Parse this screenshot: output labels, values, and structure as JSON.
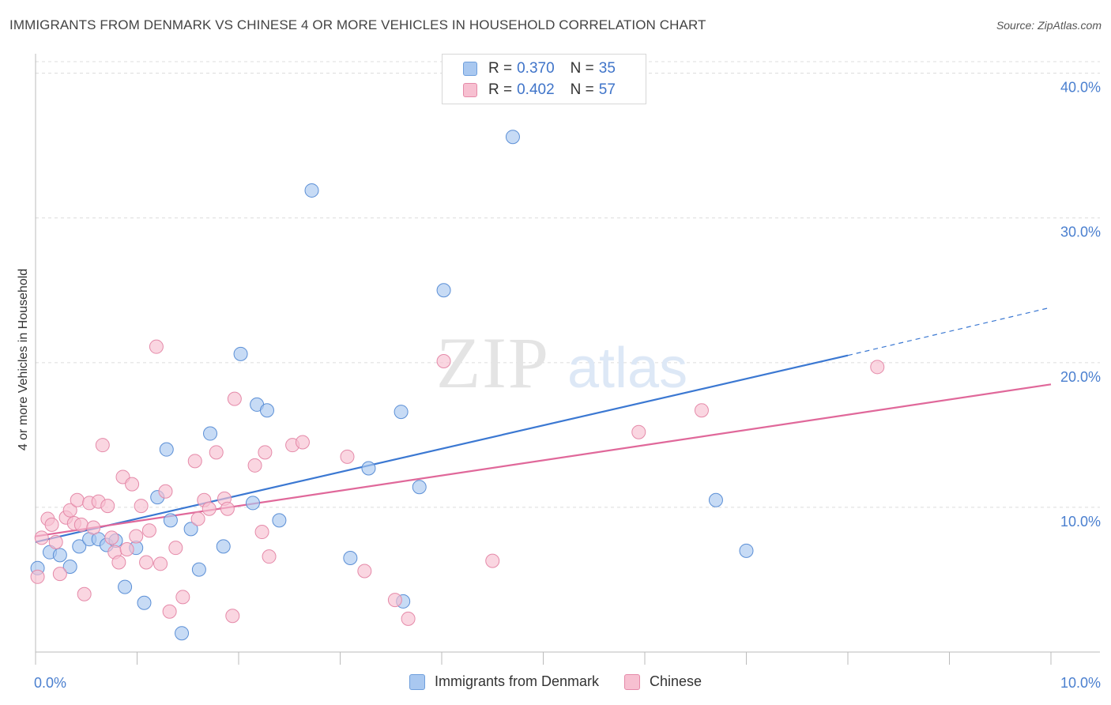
{
  "title": "IMMIGRANTS FROM DENMARK VS CHINESE 4 OR MORE VEHICLES IN HOUSEHOLD CORRELATION CHART",
  "source": "Source: ZipAtlas.com",
  "watermark": {
    "zip": "ZIP",
    "atlas": "atlas"
  },
  "legend": {
    "rows": [
      {
        "r_label": "R =",
        "r_value": "0.370",
        "n_label": "N =",
        "n_value": "35",
        "color": "#a9c8f0",
        "border": "#6f9fdc"
      },
      {
        "r_label": "R =",
        "r_value": "0.402",
        "n_label": "N =",
        "n_value": "57",
        "color": "#f7c0d1",
        "border": "#e58aa9"
      }
    ]
  },
  "bottom_legend": [
    {
      "label": "Immigrants from Denmark",
      "color": "#a9c8f0",
      "border": "#6f9fdc"
    },
    {
      "label": "Chinese",
      "color": "#f7c0d1",
      "border": "#e58aa9"
    }
  ],
  "chart_data": {
    "type": "scatter",
    "title": "IMMIGRANTS FROM DENMARK VS CHINESE 4 OR MORE VEHICLES IN HOUSEHOLD CORRELATION CHART",
    "xlabel": "",
    "ylabel": "4 or more Vehicles in Household",
    "xlim": [
      0,
      10
    ],
    "ylim": [
      0,
      40.8
    ],
    "x_tick_labels": [
      "0.0%",
      "10.0%"
    ],
    "y_ticks": [
      10,
      20,
      30,
      40
    ],
    "y_tick_labels": [
      "10.0%",
      "20.0%",
      "30.0%",
      "40.0%"
    ],
    "grid": true,
    "series": [
      {
        "name": "Immigrants from Denmark",
        "color": "#5b8fd6",
        "fill": "#a9c8f0",
        "points": [
          [
            0.02,
            5.8
          ],
          [
            0.14,
            6.9
          ],
          [
            0.24,
            6.7
          ],
          [
            0.34,
            5.9
          ],
          [
            0.43,
            7.3
          ],
          [
            0.53,
            7.8
          ],
          [
            0.62,
            7.8
          ],
          [
            0.7,
            7.4
          ],
          [
            0.79,
            7.7
          ],
          [
            0.88,
            4.5
          ],
          [
            0.99,
            7.2
          ],
          [
            1.07,
            3.4
          ],
          [
            1.2,
            10.7
          ],
          [
            1.29,
            14.0
          ],
          [
            1.33,
            9.1
          ],
          [
            1.44,
            1.3
          ],
          [
            1.53,
            8.5
          ],
          [
            1.61,
            5.7
          ],
          [
            1.72,
            15.1
          ],
          [
            1.85,
            7.3
          ],
          [
            2.02,
            20.6
          ],
          [
            2.14,
            10.3
          ],
          [
            2.18,
            17.1
          ],
          [
            2.28,
            16.7
          ],
          [
            2.4,
            9.1
          ],
          [
            2.72,
            31.9
          ],
          [
            3.1,
            6.5
          ],
          [
            3.28,
            12.7
          ],
          [
            3.6,
            16.6
          ],
          [
            3.62,
            3.5
          ],
          [
            3.78,
            11.4
          ],
          [
            4.02,
            25.0
          ],
          [
            4.7,
            35.6
          ],
          [
            6.7,
            10.5
          ],
          [
            7.0,
            7.0
          ]
        ]
      },
      {
        "name": "Chinese",
        "color": "#e58aa9",
        "fill": "#f7c0d1",
        "points": [
          [
            0.02,
            5.2
          ],
          [
            0.06,
            7.9
          ],
          [
            0.12,
            9.2
          ],
          [
            0.16,
            8.8
          ],
          [
            0.2,
            7.6
          ],
          [
            0.24,
            5.4
          ],
          [
            0.3,
            9.3
          ],
          [
            0.34,
            9.8
          ],
          [
            0.38,
            8.9
          ],
          [
            0.41,
            10.5
          ],
          [
            0.45,
            8.8
          ],
          [
            0.48,
            4.0
          ],
          [
            0.53,
            10.3
          ],
          [
            0.57,
            8.6
          ],
          [
            0.62,
            10.4
          ],
          [
            0.66,
            14.3
          ],
          [
            0.71,
            10.1
          ],
          [
            0.75,
            7.9
          ],
          [
            0.78,
            6.9
          ],
          [
            0.82,
            6.2
          ],
          [
            0.86,
            12.1
          ],
          [
            0.9,
            7.1
          ],
          [
            0.95,
            11.6
          ],
          [
            0.99,
            8.0
          ],
          [
            1.04,
            10.1
          ],
          [
            1.09,
            6.2
          ],
          [
            1.12,
            8.4
          ],
          [
            1.19,
            21.1
          ],
          [
            1.23,
            6.1
          ],
          [
            1.28,
            11.1
          ],
          [
            1.32,
            2.8
          ],
          [
            1.38,
            7.2
          ],
          [
            1.45,
            3.8
          ],
          [
            1.57,
            13.2
          ],
          [
            1.6,
            9.2
          ],
          [
            1.66,
            10.5
          ],
          [
            1.71,
            9.9
          ],
          [
            1.78,
            13.8
          ],
          [
            1.86,
            10.6
          ],
          [
            1.89,
            9.9
          ],
          [
            1.94,
            2.5
          ],
          [
            1.96,
            17.5
          ],
          [
            2.16,
            12.9
          ],
          [
            2.23,
            8.3
          ],
          [
            2.26,
            13.8
          ],
          [
            2.3,
            6.6
          ],
          [
            2.53,
            14.3
          ],
          [
            2.63,
            14.5
          ],
          [
            3.07,
            13.5
          ],
          [
            3.24,
            5.6
          ],
          [
            3.54,
            3.6
          ],
          [
            3.67,
            2.3
          ],
          [
            4.02,
            20.1
          ],
          [
            4.5,
            6.3
          ],
          [
            5.94,
            15.2
          ],
          [
            6.56,
            16.7
          ],
          [
            8.29,
            19.7
          ]
        ]
      }
    ],
    "trendlines": [
      {
        "series": "Immigrants from Denmark",
        "x": [
          0,
          8.0
        ],
        "y": [
          7.6,
          20.5
        ],
        "dashed_to": [
          9.99,
          23.8
        ],
        "color": "#3b78d2"
      },
      {
        "series": "Chinese",
        "x": [
          0,
          10.0
        ],
        "y": [
          8.0,
          18.5
        ],
        "color": "#e0689a"
      }
    ]
  }
}
